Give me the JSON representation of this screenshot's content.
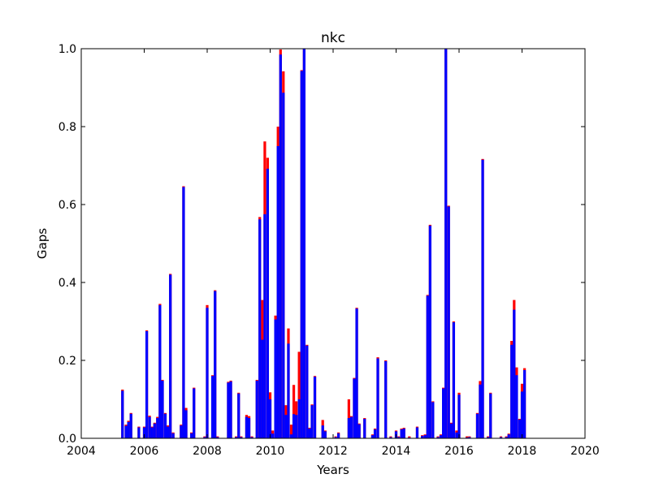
{
  "chart_data": {
    "type": "bar",
    "title": "nkc",
    "xlabel": "Years",
    "ylabel": "Gaps",
    "xlim": [
      2004,
      2020
    ],
    "ylim": [
      0,
      1.0
    ],
    "x_ticks": [
      "2004",
      "2006",
      "2008",
      "2010",
      "2012",
      "2014",
      "2016",
      "2018",
      "2020"
    ],
    "y_ticks": [
      "0.0",
      "0.2",
      "0.4",
      "0.6",
      "0.8",
      "1.0"
    ],
    "grid": false,
    "legend": "none",
    "bar_width_years": 0.083,
    "series": [
      {
        "color": "#ff0000",
        "points": [
          {
            "x": 2005.31,
            "y": 0.125
          },
          {
            "x": 2005.42,
            "y": 0.035
          },
          {
            "x": 2005.5,
            "y": 0.045
          },
          {
            "x": 2005.58,
            "y": 0.065
          },
          {
            "x": 2005.83,
            "y": 0.03
          },
          {
            "x": 2006.0,
            "y": 0.03
          },
          {
            "x": 2006.08,
            "y": 0.277
          },
          {
            "x": 2006.17,
            "y": 0.058
          },
          {
            "x": 2006.25,
            "y": 0.03
          },
          {
            "x": 2006.33,
            "y": 0.04
          },
          {
            "x": 2006.42,
            "y": 0.055
          },
          {
            "x": 2006.5,
            "y": 0.345
          },
          {
            "x": 2006.58,
            "y": 0.15
          },
          {
            "x": 2006.67,
            "y": 0.065
          },
          {
            "x": 2006.75,
            "y": 0.033
          },
          {
            "x": 2006.83,
            "y": 0.422
          },
          {
            "x": 2006.92,
            "y": 0.015
          },
          {
            "x": 2007.17,
            "y": 0.035
          },
          {
            "x": 2007.25,
            "y": 0.647
          },
          {
            "x": 2007.33,
            "y": 0.078
          },
          {
            "x": 2007.5,
            "y": 0.015
          },
          {
            "x": 2007.58,
            "y": 0.13
          },
          {
            "x": 2007.92,
            "y": 0.005
          },
          {
            "x": 2008.0,
            "y": 0.342
          },
          {
            "x": 2008.17,
            "y": 0.162
          },
          {
            "x": 2008.25,
            "y": 0.38
          },
          {
            "x": 2008.33,
            "y": 0.005
          },
          {
            "x": 2008.67,
            "y": 0.145
          },
          {
            "x": 2008.75,
            "y": 0.148
          },
          {
            "x": 2008.92,
            "y": 0.005
          },
          {
            "x": 2009.0,
            "y": 0.117
          },
          {
            "x": 2009.08,
            "y": 0.005
          },
          {
            "x": 2009.25,
            "y": 0.06
          },
          {
            "x": 2009.33,
            "y": 0.057
          },
          {
            "x": 2009.42,
            "y": 0.005
          },
          {
            "x": 2009.58,
            "y": 0.15
          },
          {
            "x": 2009.67,
            "y": 0.568
          },
          {
            "x": 2009.75,
            "y": 0.355
          },
          {
            "x": 2009.83,
            "y": 0.762
          },
          {
            "x": 2009.92,
            "y": 0.72
          },
          {
            "x": 2010.0,
            "y": 0.118
          },
          {
            "x": 2010.08,
            "y": 0.02
          },
          {
            "x": 2010.17,
            "y": 0.315
          },
          {
            "x": 2010.25,
            "y": 0.8
          },
          {
            "x": 2010.33,
            "y": 0.998
          },
          {
            "x": 2010.42,
            "y": 0.942
          },
          {
            "x": 2010.5,
            "y": 0.085
          },
          {
            "x": 2010.58,
            "y": 0.282
          },
          {
            "x": 2010.67,
            "y": 0.035
          },
          {
            "x": 2010.75,
            "y": 0.137
          },
          {
            "x": 2010.83,
            "y": 0.095
          },
          {
            "x": 2010.92,
            "y": 0.222
          },
          {
            "x": 2011.0,
            "y": 0.945
          },
          {
            "x": 2011.08,
            "y": 1.0
          },
          {
            "x": 2011.17,
            "y": 0.24
          },
          {
            "x": 2011.25,
            "y": 0.027
          },
          {
            "x": 2011.33,
            "y": 0.087
          },
          {
            "x": 2011.42,
            "y": 0.16
          },
          {
            "x": 2011.67,
            "y": 0.047
          },
          {
            "x": 2011.75,
            "y": 0.02
          },
          {
            "x": 2012.08,
            "y": 0.005
          },
          {
            "x": 2012.17,
            "y": 0.015
          },
          {
            "x": 2012.5,
            "y": 0.1
          },
          {
            "x": 2012.58,
            "y": 0.057
          },
          {
            "x": 2012.67,
            "y": 0.155
          },
          {
            "x": 2012.75,
            "y": 0.335
          },
          {
            "x": 2012.83,
            "y": 0.038
          },
          {
            "x": 2013.0,
            "y": 0.052
          },
          {
            "x": 2013.25,
            "y": 0.01
          },
          {
            "x": 2013.33,
            "y": 0.025
          },
          {
            "x": 2013.42,
            "y": 0.208
          },
          {
            "x": 2013.67,
            "y": 0.2
          },
          {
            "x": 2013.83,
            "y": 0.005
          },
          {
            "x": 2014.0,
            "y": 0.02
          },
          {
            "x": 2014.08,
            "y": 0.005
          },
          {
            "x": 2014.17,
            "y": 0.025
          },
          {
            "x": 2014.25,
            "y": 0.027
          },
          {
            "x": 2014.42,
            "y": 0.005
          },
          {
            "x": 2014.67,
            "y": 0.03
          },
          {
            "x": 2014.83,
            "y": 0.008
          },
          {
            "x": 2014.92,
            "y": 0.01
          },
          {
            "x": 2015.0,
            "y": 0.368
          },
          {
            "x": 2015.08,
            "y": 0.548
          },
          {
            "x": 2015.17,
            "y": 0.095
          },
          {
            "x": 2015.33,
            "y": 0.005
          },
          {
            "x": 2015.42,
            "y": 0.01
          },
          {
            "x": 2015.5,
            "y": 0.13
          },
          {
            "x": 2015.58,
            "y": 1.0
          },
          {
            "x": 2015.67,
            "y": 0.597
          },
          {
            "x": 2015.75,
            "y": 0.04
          },
          {
            "x": 2015.83,
            "y": 0.3
          },
          {
            "x": 2015.92,
            "y": 0.02
          },
          {
            "x": 2016.0,
            "y": 0.117
          },
          {
            "x": 2016.25,
            "y": 0.005
          },
          {
            "x": 2016.33,
            "y": 0.005
          },
          {
            "x": 2016.58,
            "y": 0.065
          },
          {
            "x": 2016.67,
            "y": 0.147
          },
          {
            "x": 2016.75,
            "y": 0.717
          },
          {
            "x": 2016.92,
            "y": 0.005
          },
          {
            "x": 2017.0,
            "y": 0.117
          },
          {
            "x": 2017.33,
            "y": 0.005
          },
          {
            "x": 2017.5,
            "y": 0.005
          },
          {
            "x": 2017.58,
            "y": 0.012
          },
          {
            "x": 2017.67,
            "y": 0.25
          },
          {
            "x": 2017.75,
            "y": 0.355
          },
          {
            "x": 2017.83,
            "y": 0.182
          },
          {
            "x": 2017.92,
            "y": 0.05
          },
          {
            "x": 2018.0,
            "y": 0.14
          },
          {
            "x": 2018.08,
            "y": 0.18
          }
        ]
      },
      {
        "color": "#0000ff",
        "points": [
          {
            "x": 2005.31,
            "y": 0.122
          },
          {
            "x": 2005.42,
            "y": 0.032
          },
          {
            "x": 2005.5,
            "y": 0.042
          },
          {
            "x": 2005.58,
            "y": 0.063
          },
          {
            "x": 2005.83,
            "y": 0.028
          },
          {
            "x": 2006.0,
            "y": 0.028
          },
          {
            "x": 2006.08,
            "y": 0.275
          },
          {
            "x": 2006.17,
            "y": 0.055
          },
          {
            "x": 2006.25,
            "y": 0.028
          },
          {
            "x": 2006.33,
            "y": 0.038
          },
          {
            "x": 2006.42,
            "y": 0.052
          },
          {
            "x": 2006.5,
            "y": 0.342
          },
          {
            "x": 2006.58,
            "y": 0.148
          },
          {
            "x": 2006.67,
            "y": 0.063
          },
          {
            "x": 2006.75,
            "y": 0.03
          },
          {
            "x": 2006.83,
            "y": 0.42
          },
          {
            "x": 2006.92,
            "y": 0.013
          },
          {
            "x": 2007.17,
            "y": 0.033
          },
          {
            "x": 2007.25,
            "y": 0.645
          },
          {
            "x": 2007.33,
            "y": 0.072
          },
          {
            "x": 2007.5,
            "y": 0.013
          },
          {
            "x": 2007.58,
            "y": 0.128
          },
          {
            "x": 2007.92,
            "y": 0.003
          },
          {
            "x": 2008.0,
            "y": 0.335
          },
          {
            "x": 2008.17,
            "y": 0.16
          },
          {
            "x": 2008.25,
            "y": 0.378
          },
          {
            "x": 2008.33,
            "y": 0.003
          },
          {
            "x": 2008.67,
            "y": 0.143
          },
          {
            "x": 2008.75,
            "y": 0.146
          },
          {
            "x": 2008.92,
            "y": 0.003
          },
          {
            "x": 2009.0,
            "y": 0.115
          },
          {
            "x": 2009.08,
            "y": 0.003
          },
          {
            "x": 2009.25,
            "y": 0.055
          },
          {
            "x": 2009.33,
            "y": 0.052
          },
          {
            "x": 2009.42,
            "y": 0.003
          },
          {
            "x": 2009.58,
            "y": 0.148
          },
          {
            "x": 2009.67,
            "y": 0.562
          },
          {
            "x": 2009.75,
            "y": 0.253
          },
          {
            "x": 2009.83,
            "y": 0.575
          },
          {
            "x": 2009.92,
            "y": 0.692
          },
          {
            "x": 2010.0,
            "y": 0.1
          },
          {
            "x": 2010.08,
            "y": 0.012
          },
          {
            "x": 2010.17,
            "y": 0.305
          },
          {
            "x": 2010.25,
            "y": 0.75
          },
          {
            "x": 2010.33,
            "y": 0.985
          },
          {
            "x": 2010.42,
            "y": 0.887
          },
          {
            "x": 2010.5,
            "y": 0.06
          },
          {
            "x": 2010.58,
            "y": 0.243
          },
          {
            "x": 2010.67,
            "y": 0.01
          },
          {
            "x": 2010.75,
            "y": 0.062
          },
          {
            "x": 2010.83,
            "y": 0.06
          },
          {
            "x": 2010.92,
            "y": 0.1
          },
          {
            "x": 2011.0,
            "y": 0.943
          },
          {
            "x": 2011.08,
            "y": 1.0
          },
          {
            "x": 2011.17,
            "y": 0.238
          },
          {
            "x": 2011.25,
            "y": 0.025
          },
          {
            "x": 2011.33,
            "y": 0.085
          },
          {
            "x": 2011.42,
            "y": 0.158
          },
          {
            "x": 2011.67,
            "y": 0.033
          },
          {
            "x": 2011.75,
            "y": 0.018
          },
          {
            "x": 2012.08,
            "y": 0.003
          },
          {
            "x": 2012.17,
            "y": 0.013
          },
          {
            "x": 2012.5,
            "y": 0.052
          },
          {
            "x": 2012.58,
            "y": 0.055
          },
          {
            "x": 2012.67,
            "y": 0.153
          },
          {
            "x": 2012.75,
            "y": 0.333
          },
          {
            "x": 2012.83,
            "y": 0.036
          },
          {
            "x": 2013.0,
            "y": 0.05
          },
          {
            "x": 2013.25,
            "y": 0.008
          },
          {
            "x": 2013.33,
            "y": 0.023
          },
          {
            "x": 2013.42,
            "y": 0.205
          },
          {
            "x": 2013.67,
            "y": 0.198
          },
          {
            "x": 2013.83,
            "y": 0.003
          },
          {
            "x": 2014.0,
            "y": 0.018
          },
          {
            "x": 2014.08,
            "y": 0.003
          },
          {
            "x": 2014.17,
            "y": 0.023
          },
          {
            "x": 2014.25,
            "y": 0.025
          },
          {
            "x": 2014.42,
            "y": 0.002
          },
          {
            "x": 2014.67,
            "y": 0.028
          },
          {
            "x": 2014.83,
            "y": 0.006
          },
          {
            "x": 2014.92,
            "y": 0.008
          },
          {
            "x": 2015.0,
            "y": 0.366
          },
          {
            "x": 2015.08,
            "y": 0.546
          },
          {
            "x": 2015.17,
            "y": 0.093
          },
          {
            "x": 2015.33,
            "y": 0.003
          },
          {
            "x": 2015.42,
            "y": 0.008
          },
          {
            "x": 2015.5,
            "y": 0.128
          },
          {
            "x": 2015.58,
            "y": 1.0
          },
          {
            "x": 2015.67,
            "y": 0.595
          },
          {
            "x": 2015.75,
            "y": 0.038
          },
          {
            "x": 2015.83,
            "y": 0.298
          },
          {
            "x": 2015.92,
            "y": 0.015
          },
          {
            "x": 2016.0,
            "y": 0.112
          },
          {
            "x": 2016.25,
            "y": 0.002
          },
          {
            "x": 2016.33,
            "y": 0.003
          },
          {
            "x": 2016.58,
            "y": 0.063
          },
          {
            "x": 2016.67,
            "y": 0.138
          },
          {
            "x": 2016.75,
            "y": 0.715
          },
          {
            "x": 2016.92,
            "y": 0.003
          },
          {
            "x": 2017.0,
            "y": 0.115
          },
          {
            "x": 2017.33,
            "y": 0.003
          },
          {
            "x": 2017.5,
            "y": 0.003
          },
          {
            "x": 2017.58,
            "y": 0.01
          },
          {
            "x": 2017.67,
            "y": 0.24
          },
          {
            "x": 2017.75,
            "y": 0.33
          },
          {
            "x": 2017.83,
            "y": 0.162
          },
          {
            "x": 2017.92,
            "y": 0.048
          },
          {
            "x": 2018.0,
            "y": 0.12
          },
          {
            "x": 2018.08,
            "y": 0.175
          }
        ]
      }
    ]
  }
}
